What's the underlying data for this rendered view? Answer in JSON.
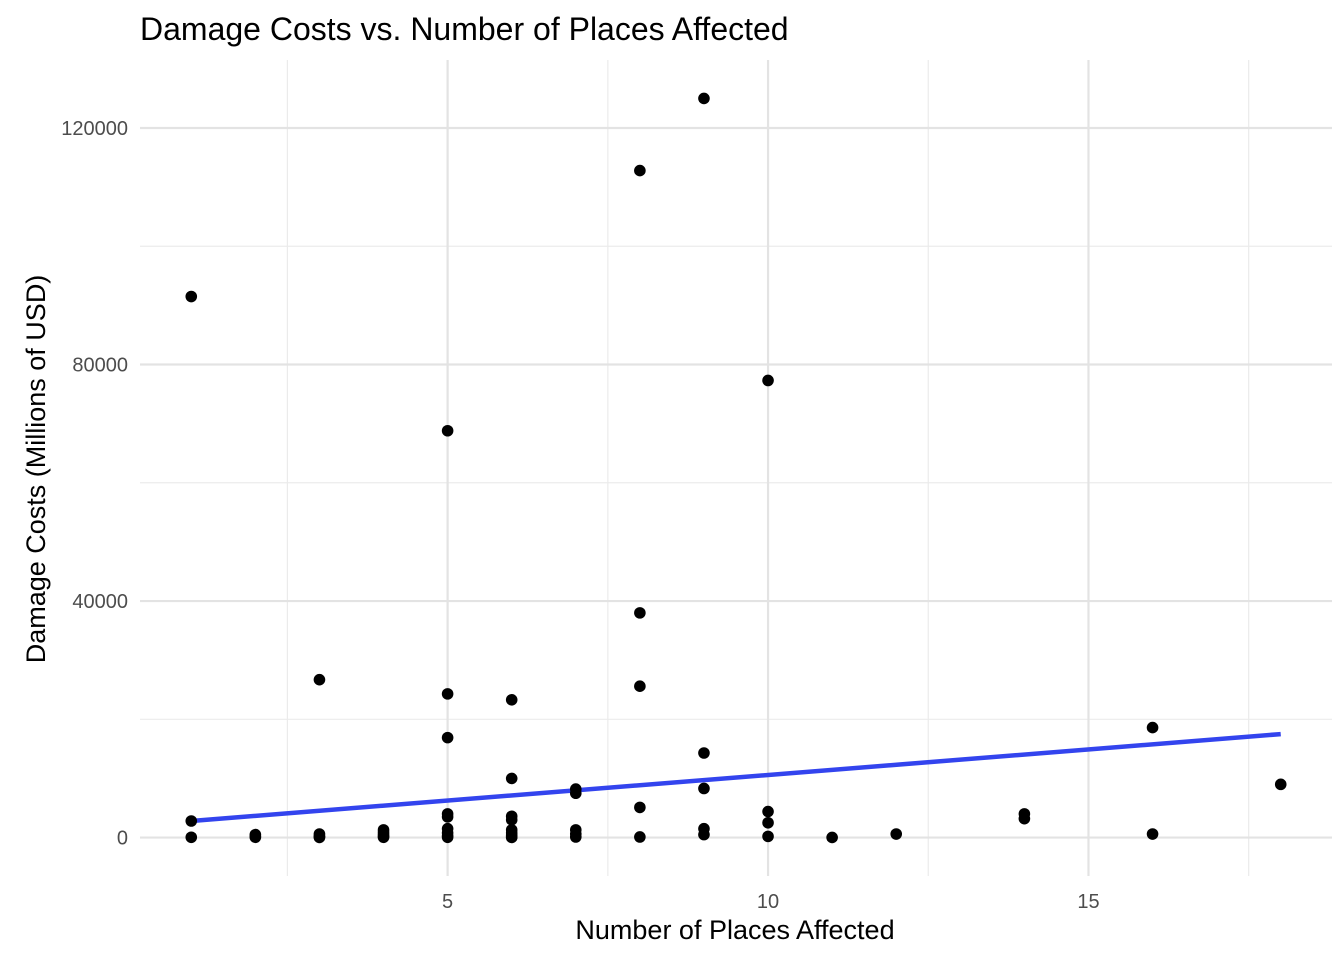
{
  "chart_data": {
    "type": "scatter",
    "title": "Damage Costs vs. Number of Places Affected",
    "xlabel": "Number of Places Affected",
    "ylabel": "Damage Costs (Millions of USD)",
    "xlim": [
      0.2,
      18.8
    ],
    "ylim": [
      -6500,
      131500
    ],
    "xticks": [
      5,
      10,
      15
    ],
    "yticks": [
      0,
      40000,
      80000,
      120000
    ],
    "xminor": [
      2.5,
      7.5,
      12.5,
      17.5
    ],
    "yminor": [
      20000,
      60000,
      100000
    ],
    "grid": true,
    "point_color": "#000000",
    "trend_color": "#3344ee",
    "points": [
      [
        1,
        91500
      ],
      [
        1,
        2800
      ],
      [
        1,
        50
      ],
      [
        2,
        500
      ],
      [
        2,
        200
      ],
      [
        2,
        50
      ],
      [
        3,
        26700
      ],
      [
        3,
        600
      ],
      [
        3,
        300
      ],
      [
        3,
        100
      ],
      [
        3,
        20
      ],
      [
        4,
        1300
      ],
      [
        4,
        900
      ],
      [
        4,
        500
      ],
      [
        4,
        200
      ],
      [
        4,
        50
      ],
      [
        5,
        68800
      ],
      [
        5,
        24300
      ],
      [
        5,
        16900
      ],
      [
        5,
        4000
      ],
      [
        5,
        3500
      ],
      [
        5,
        1500
      ],
      [
        5,
        800
      ],
      [
        5,
        300
      ],
      [
        5,
        50
      ],
      [
        6,
        23300
      ],
      [
        6,
        10000
      ],
      [
        6,
        3600
      ],
      [
        6,
        3000
      ],
      [
        6,
        1300
      ],
      [
        6,
        800
      ],
      [
        6,
        400
      ],
      [
        6,
        100
      ],
      [
        6,
        20
      ],
      [
        7,
        8200
      ],
      [
        7,
        7500
      ],
      [
        7,
        1300
      ],
      [
        7,
        600
      ],
      [
        7,
        100
      ],
      [
        8,
        112800
      ],
      [
        8,
        38000
      ],
      [
        8,
        25600
      ],
      [
        8,
        5100
      ],
      [
        8,
        100
      ],
      [
        9,
        125000
      ],
      [
        9,
        14300
      ],
      [
        9,
        8300
      ],
      [
        9,
        1500
      ],
      [
        9,
        500
      ],
      [
        10,
        77300
      ],
      [
        10,
        4400
      ],
      [
        10,
        2500
      ],
      [
        10,
        200
      ],
      [
        11,
        20
      ],
      [
        12,
        600
      ],
      [
        14,
        4000
      ],
      [
        14,
        3200
      ],
      [
        16,
        18600
      ],
      [
        16,
        600
      ],
      [
        18,
        9000
      ]
    ],
    "trend_line": {
      "x": [
        1,
        18
      ],
      "y": [
        2800,
        17500
      ]
    }
  }
}
